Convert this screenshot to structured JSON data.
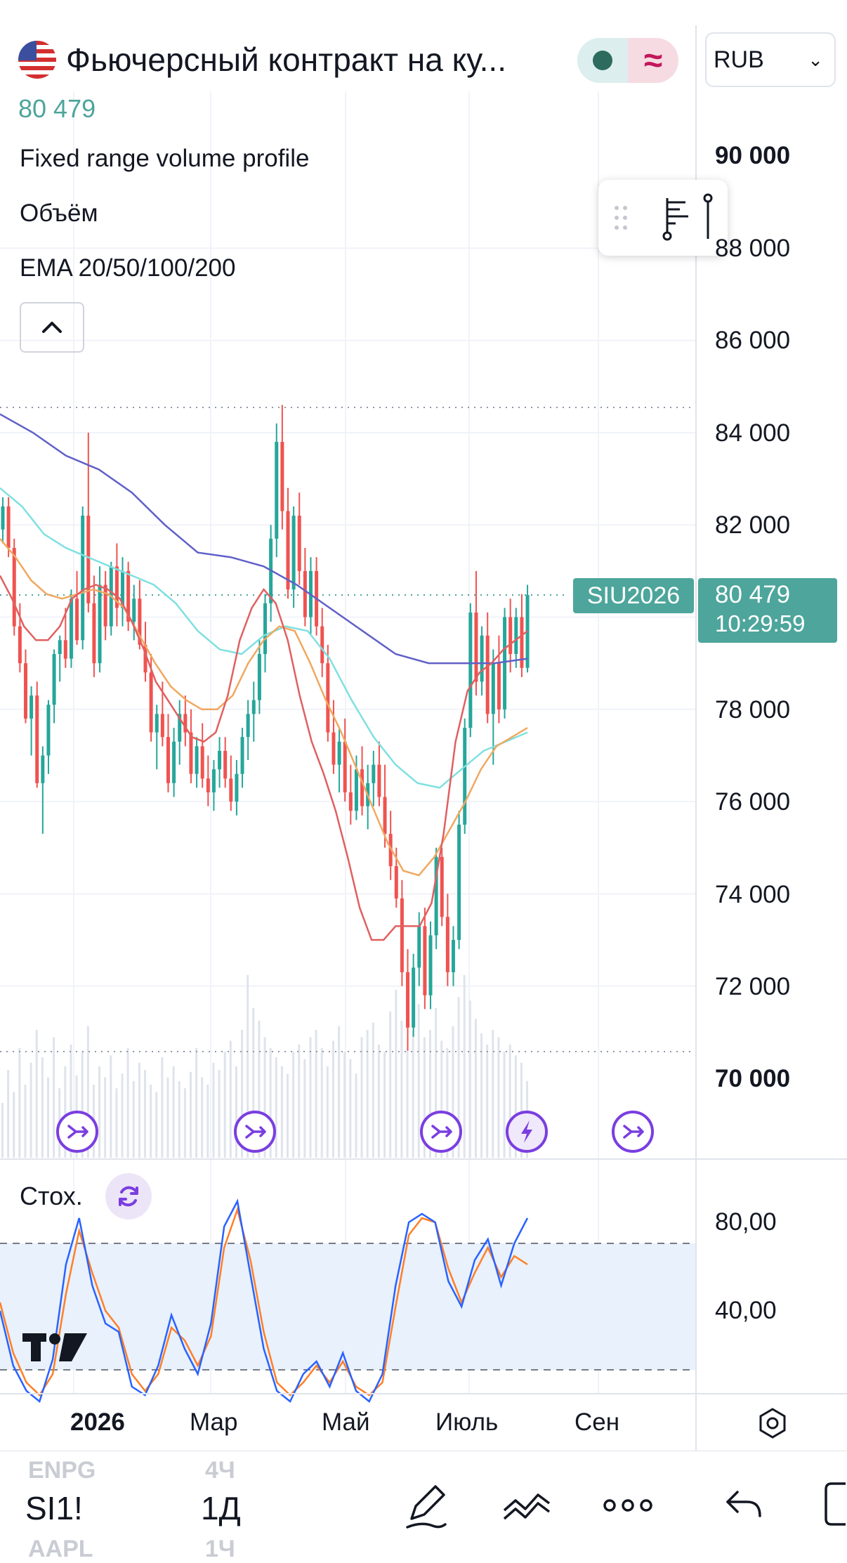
{
  "header": {
    "title": "Фьючерсный контракт на ку...",
    "last_price": "80 479",
    "currency": "RUB",
    "status_icon": "wave-icon"
  },
  "legend": {
    "items": [
      "Fixed range volume profile",
      "Объём",
      "EMA 20/50/100/200"
    ]
  },
  "price_axis": {
    "labels": [
      "90 000",
      "88 000",
      "86 000",
      "84 000",
      "82 000",
      "78 000",
      "76 000",
      "74 000",
      "72 000",
      "70 000"
    ]
  },
  "price_tag": {
    "symbol": "SIU2026",
    "price": "80 479",
    "countdown": "10:29:59"
  },
  "stochastic": {
    "label": "Стох.",
    "axis_labels": [
      "80,00",
      "40,00"
    ]
  },
  "time_axis": {
    "labels": [
      "2026",
      "Мар",
      "Май",
      "Июль",
      "Сен"
    ]
  },
  "bottom_bar": {
    "symbol": "SI1!",
    "interval": "1Д",
    "ghost_symbol_top": "ENPG",
    "ghost_interval_top": "4Ч",
    "ghost_symbol_bottom": "AAPL",
    "ghost_interval_bottom": "1Ч"
  },
  "colors": {
    "up": "#26a69a",
    "down": "#ef5350",
    "ema20": "#e06060",
    "ema50": "#f0a860",
    "ema100": "#80e0e0",
    "ema200": "#6060c8",
    "stoch_k": "#2962ff",
    "stoch_d": "#ff7f27",
    "price_tag": "#4da59b"
  },
  "chart_data": {
    "type": "candlestick",
    "ylim": [
      69000,
      91000
    ],
    "last_price": 80479,
    "candles": [
      [
        81900,
        82600,
        81600,
        82400
      ],
      [
        82400,
        82600,
        81300,
        81500
      ],
      [
        81500,
        81700,
        79600,
        79800
      ],
      [
        79800,
        80300,
        78800,
        79000
      ],
      [
        79000,
        79300,
        77700,
        77800
      ],
      [
        77800,
        78500,
        77000,
        78300
      ],
      [
        78300,
        78600,
        76300,
        76400
      ],
      [
        76400,
        77200,
        75300,
        77000
      ],
      [
        77000,
        78200,
        76600,
        78100
      ],
      [
        78100,
        79300,
        77700,
        79200
      ],
      [
        79200,
        79600,
        78600,
        79500
      ],
      [
        79500,
        80200,
        78900,
        79100
      ],
      [
        79100,
        80600,
        78900,
        80400
      ],
      [
        80400,
        81000,
        79400,
        79500
      ],
      [
        79500,
        82400,
        79300,
        82200
      ],
      [
        82200,
        84000,
        80100,
        80300
      ],
      [
        80300,
        80900,
        78700,
        79000
      ],
      [
        79000,
        81100,
        78800,
        80700
      ],
      [
        80700,
        81000,
        79500,
        79800
      ],
      [
        79800,
        81200,
        79600,
        81100
      ],
      [
        81100,
        81600,
        79800,
        80200
      ],
      [
        80200,
        81300,
        79800,
        81000
      ],
      [
        81000,
        81200,
        79700,
        79900
      ],
      [
        79900,
        80700,
        79500,
        80400
      ],
      [
        80400,
        80800,
        79300,
        79400
      ],
      [
        79400,
        79900,
        78600,
        78800
      ],
      [
        78800,
        79200,
        77300,
        77500
      ],
      [
        77500,
        78100,
        76700,
        77900
      ],
      [
        77900,
        78600,
        77200,
        77400
      ],
      [
        77400,
        77900,
        76200,
        76400
      ],
      [
        76400,
        77600,
        76100,
        77300
      ],
      [
        77300,
        78200,
        76800,
        77900
      ],
      [
        77900,
        78300,
        77200,
        77500
      ],
      [
        77500,
        78000,
        76400,
        76600
      ],
      [
        76600,
        77400,
        76300,
        77200
      ],
      [
        77200,
        77700,
        76300,
        76500
      ],
      [
        76500,
        77000,
        75900,
        76200
      ],
      [
        76200,
        76900,
        75800,
        76700
      ],
      [
        76700,
        77400,
        76300,
        77100
      ],
      [
        77100,
        77400,
        76300,
        76500
      ],
      [
        76500,
        77000,
        75800,
        76000
      ],
      [
        76000,
        76900,
        75700,
        76600
      ],
      [
        76600,
        77600,
        76300,
        77400
      ],
      [
        77400,
        78200,
        76900,
        77900
      ],
      [
        77900,
        78600,
        77300,
        78200
      ],
      [
        78200,
        79500,
        77900,
        79200
      ],
      [
        79200,
        80500,
        78800,
        80300
      ],
      [
        80300,
        82000,
        79900,
        81700
      ],
      [
        81700,
        84200,
        81300,
        83800
      ],
      [
        83800,
        84600,
        81900,
        82300
      ],
      [
        82300,
        82800,
        80400,
        80600
      ],
      [
        80600,
        82400,
        80200,
        82200
      ],
      [
        82200,
        82700,
        80700,
        81000
      ],
      [
        81000,
        81500,
        79800,
        80000
      ],
      [
        80000,
        81300,
        79600,
        81000
      ],
      [
        81000,
        81300,
        79600,
        79800
      ],
      [
        79800,
        80200,
        78700,
        79000
      ],
      [
        79000,
        79400,
        77300,
        77500
      ],
      [
        77500,
        78200,
        76600,
        76800
      ],
      [
        76800,
        77600,
        76200,
        77300
      ],
      [
        77300,
        77800,
        76000,
        76200
      ],
      [
        76200,
        76800,
        75500,
        75800
      ],
      [
        75800,
        77000,
        75600,
        76700
      ],
      [
        76700,
        77200,
        75700,
        75900
      ],
      [
        75900,
        76800,
        75400,
        76400
      ],
      [
        76400,
        77100,
        75900,
        76800
      ],
      [
        76800,
        77300,
        75900,
        76100
      ],
      [
        76100,
        76800,
        75000,
        75300
      ],
      [
        75300,
        75800,
        74300,
        74600
      ],
      [
        74600,
        75000,
        73700,
        73900
      ],
      [
        73900,
        74300,
        72000,
        72300
      ],
      [
        72300,
        72800,
        70600,
        71100
      ],
      [
        71100,
        72700,
        70900,
        72400
      ],
      [
        72400,
        73600,
        72000,
        73300
      ],
      [
        73300,
        73700,
        71500,
        71800
      ],
      [
        71800,
        73400,
        71500,
        73100
      ],
      [
        73100,
        75000,
        72800,
        74800
      ],
      [
        74800,
        75000,
        73300,
        73500
      ],
      [
        73500,
        74000,
        72000,
        72300
      ],
      [
        72300,
        73300,
        72000,
        73000
      ],
      [
        73000,
        75800,
        72800,
        75500
      ],
      [
        75500,
        77800,
        75300,
        77600
      ],
      [
        77600,
        80300,
        77400,
        80100
      ],
      [
        80100,
        81000,
        78300,
        78600
      ],
      [
        78600,
        79800,
        78300,
        79600
      ],
      [
        79600,
        80100,
        77700,
        77900
      ],
      [
        77900,
        79300,
        76800,
        79000
      ],
      [
        79000,
        79600,
        77700,
        78000
      ],
      [
        78000,
        80200,
        77800,
        80000
      ],
      [
        80000,
        80400,
        78800,
        79200
      ],
      [
        79200,
        80200,
        78900,
        80000
      ],
      [
        80000,
        80500,
        78700,
        78900
      ],
      [
        78900,
        80700,
        78800,
        80479
      ]
    ],
    "ema20": [
      80900,
      80400,
      79800,
      79500,
      79500,
      79800,
      80400,
      80600,
      80700,
      80600,
      80400,
      79900,
      79300,
      78600,
      78200,
      77800,
      77400,
      77300,
      77500,
      78300,
      79500,
      80200,
      80600,
      80300,
      79500,
      78300,
      77300,
      76600,
      75800,
      74800,
      73700,
      73000,
      73000,
      73300,
      73300,
      73300,
      73800,
      75300,
      77300,
      78400,
      78800,
      79000,
      79300,
      79500,
      79700
    ],
    "ema50": [
      81700,
      81300,
      80800,
      80500,
      80400,
      80500,
      80600,
      80500,
      80200,
      79600,
      79000,
      78500,
      78200,
      78000,
      78000,
      78300,
      79000,
      79500,
      79800,
      79700,
      79000,
      78200,
      77500,
      76700,
      75900,
      75100,
      74500,
      74400,
      74800,
      75400,
      76000,
      76700,
      77200,
      77400,
      77600
    ],
    "ema100": [
      82800,
      82400,
      81800,
      81500,
      81300,
      81100,
      80900,
      80700,
      80300,
      79700,
      79300,
      79200,
      79600,
      79800,
      79700,
      79100,
      78200,
      77400,
      76800,
      76400,
      76300,
      76700,
      77100,
      77300,
      77500
    ],
    "ema200": [
      84400,
      84000,
      83500,
      83200,
      82700,
      82000,
      81400,
      81300,
      81100,
      80700,
      80200,
      79700,
      79200,
      79000,
      79000,
      79000,
      79100
    ],
    "stoch_k": [
      48,
      22,
      10,
      5,
      25,
      70,
      92,
      60,
      42,
      38,
      12,
      8,
      22,
      46,
      30,
      18,
      42,
      88,
      100,
      65,
      30,
      10,
      5,
      18,
      24,
      12,
      28,
      10,
      5,
      18,
      60,
      90,
      94,
      90,
      62,
      50,
      72,
      82,
      60,
      80,
      92
    ],
    "stoch_d": [
      52,
      28,
      14,
      8,
      18,
      56,
      86,
      66,
      48,
      40,
      18,
      10,
      18,
      40,
      34,
      22,
      36,
      78,
      96,
      72,
      38,
      14,
      8,
      14,
      22,
      14,
      24,
      12,
      8,
      14,
      50,
      84,
      92,
      90,
      68,
      52,
      66,
      78,
      64,
      74,
      70
    ],
    "stoch_ylim": [
      10,
      110
    ],
    "stoch_levels": [
      80,
      20
    ],
    "volume": [
      30,
      48,
      36,
      60,
      40,
      52,
      70,
      55,
      44,
      66,
      38,
      50,
      62,
      45,
      58,
      72,
      40,
      50,
      44,
      56,
      38,
      46,
      60,
      42,
      52,
      48,
      40,
      36,
      55,
      44,
      50,
      42,
      38,
      47,
      60,
      44,
      40,
      52,
      48,
      58,
      64,
      50,
      70,
      100,
      82,
      75,
      66,
      60,
      55,
      50,
      46,
      58,
      62,
      54,
      66,
      70,
      60,
      50,
      64,
      72,
      58,
      54,
      46,
      66,
      70,
      74,
      62,
      58,
      80,
      92,
      75,
      60,
      70,
      84,
      66,
      70,
      82,
      64,
      60,
      72,
      88,
      100,
      86,
      76,
      68,
      62,
      70,
      66,
      58,
      62,
      56,
      52,
      42
    ]
  }
}
